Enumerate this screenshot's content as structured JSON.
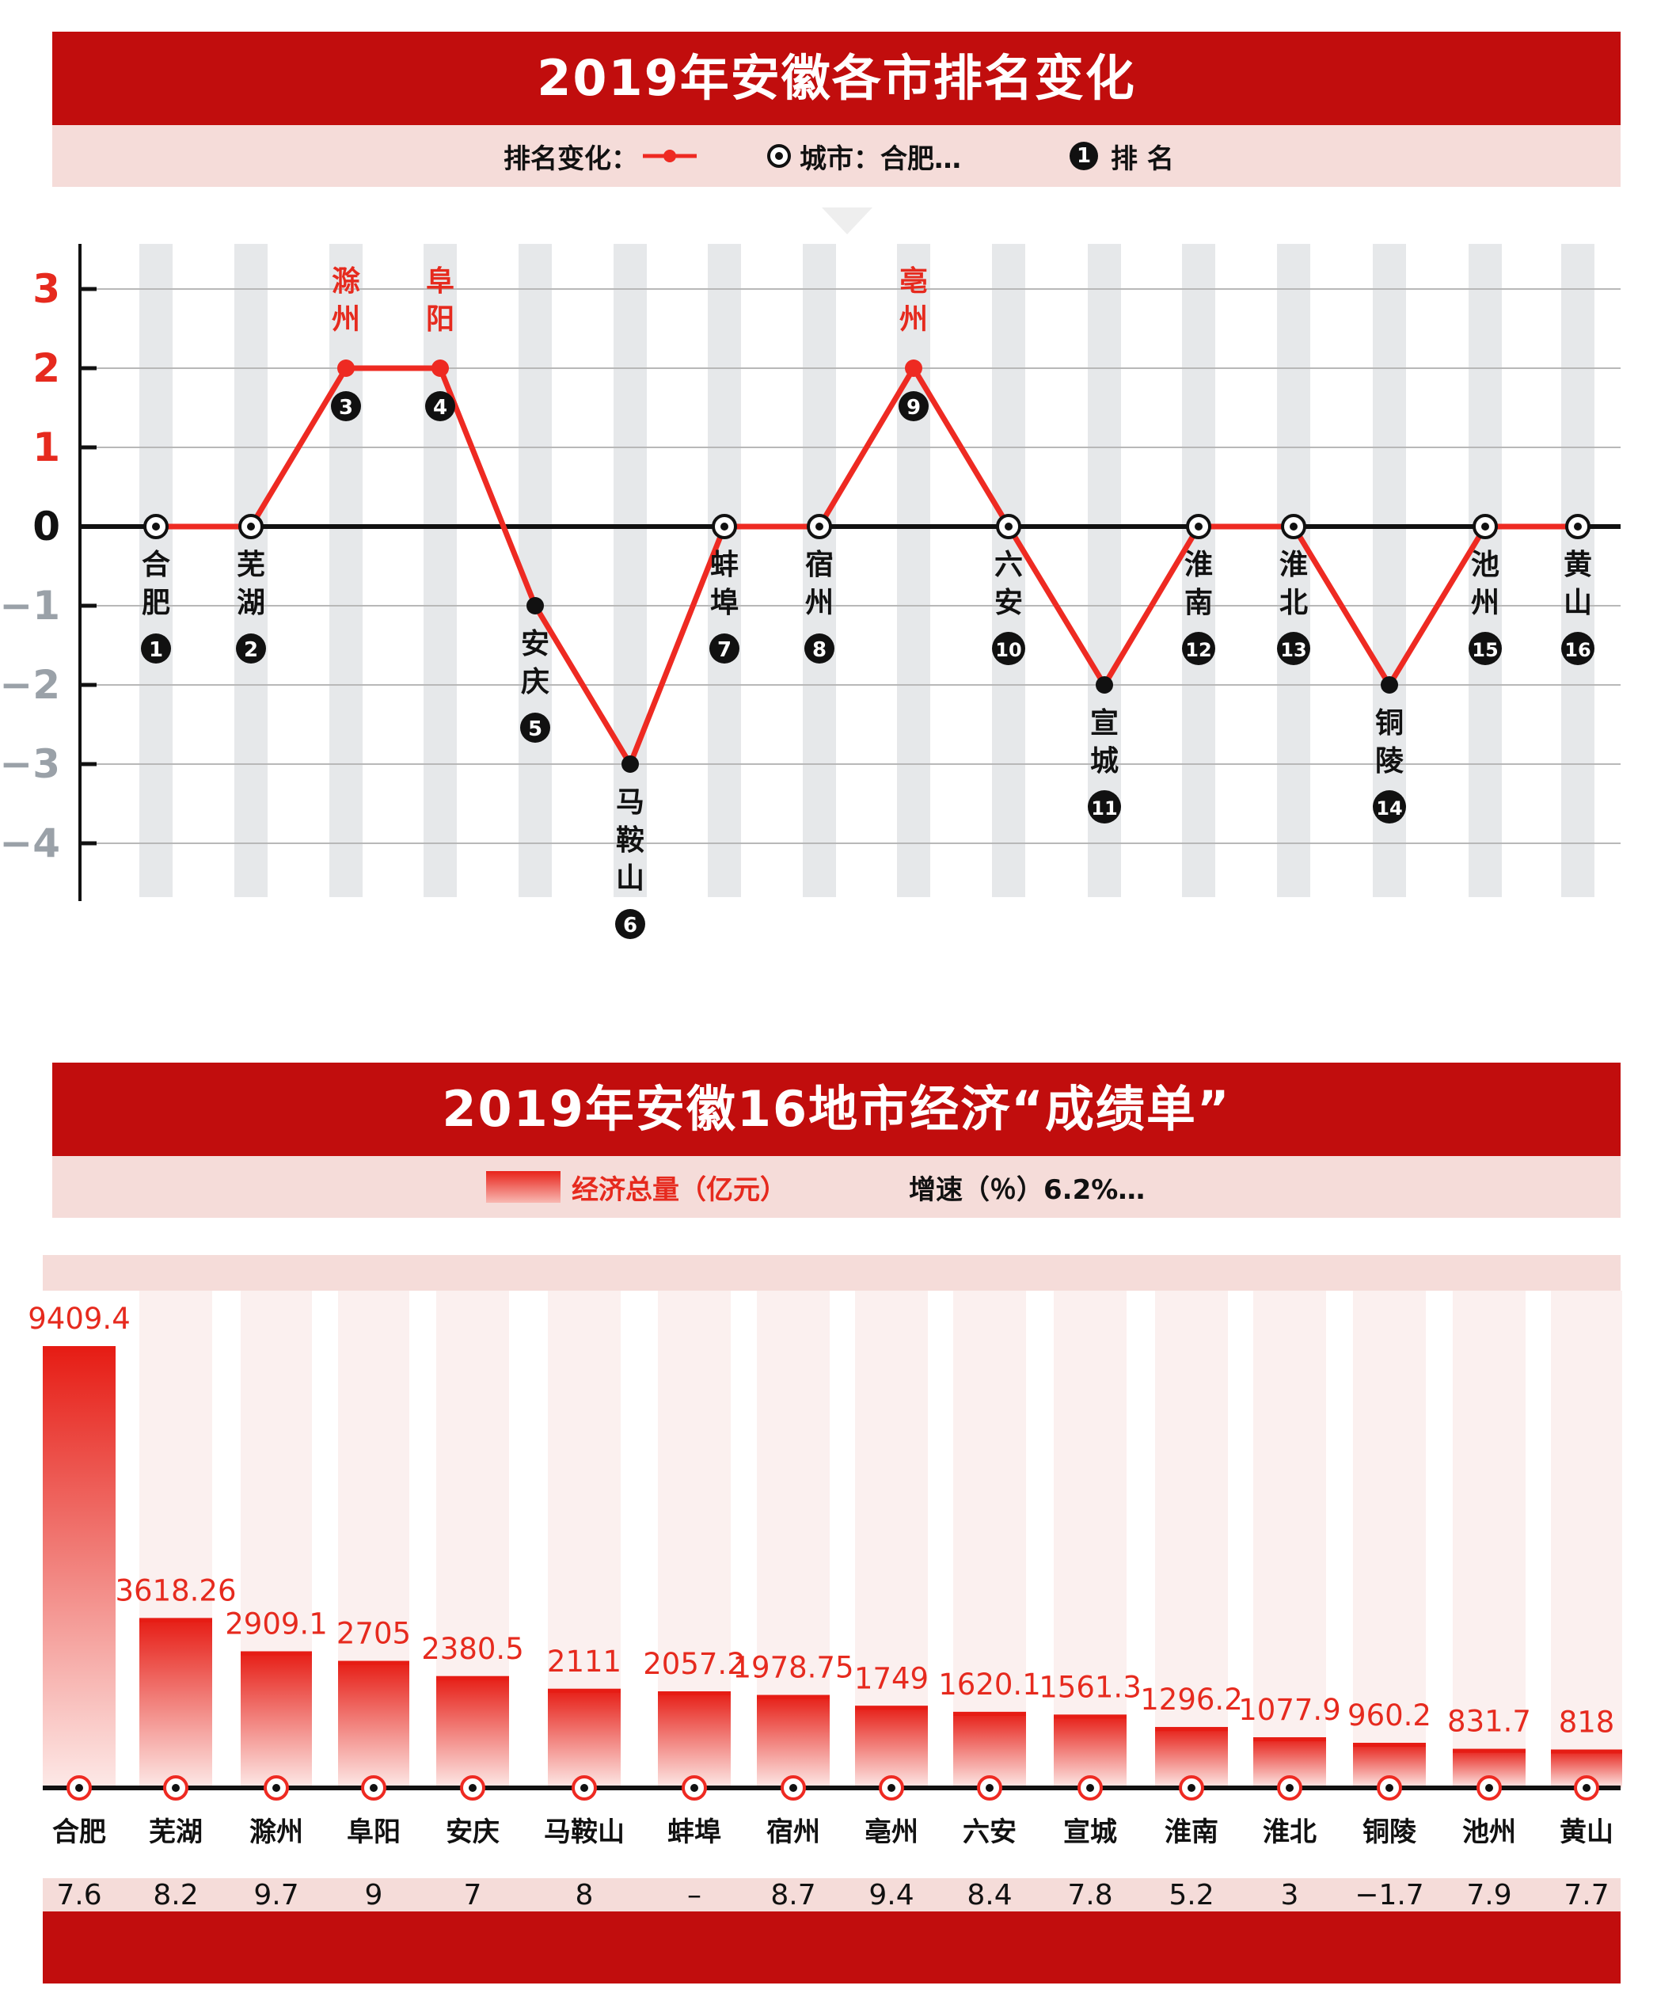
{
  "rank_section": {
    "title": "2019年安徽各市排名变化",
    "legend": {
      "change_label": "排名变化：",
      "city_label": "城市：合肥…",
      "rank_label": "排 名",
      "rank_sample": "1"
    }
  },
  "economy_section": {
    "title": "2019年安徽16地市经济“成绩单”",
    "legend": {
      "gdp_label": "经济总量（亿元）",
      "growth_label": "增速（％）6.2%…"
    }
  },
  "colors": {
    "banner": "#c10d0d",
    "legend_bg": "#f5dcd9",
    "accent_red": "#e62a1e",
    "line_red": "#ee2a22",
    "negative_axis_gray": "#9aa1a8",
    "stripe_gray": "#e6e8ea"
  },
  "chart_data": [
    {
      "type": "line",
      "title": "2019年安徽各市排名变化",
      "ylim": [
        -4.7,
        3.4
      ],
      "yticks": [
        {
          "value": 3,
          "label": "3"
        },
        {
          "value": 2,
          "label": "2"
        },
        {
          "value": 1,
          "label": "1"
        },
        {
          "value": 0,
          "label": "0"
        },
        {
          "value": -1,
          "label": "−1"
        },
        {
          "value": -2,
          "label": "−2"
        },
        {
          "value": -3,
          "label": "−3"
        },
        {
          "value": -4,
          "label": "−4"
        }
      ],
      "grid": true,
      "series": [
        {
          "name": "排名变化",
          "values": [
            0,
            0,
            2,
            2,
            -1,
            -3,
            0,
            0,
            2,
            0,
            -2,
            0,
            0,
            -2,
            0,
            0
          ]
        }
      ],
      "points": [
        {
          "city": "合肥",
          "rank": "1",
          "change": 0
        },
        {
          "city": "芜湖",
          "rank": "2",
          "change": 0
        },
        {
          "city": "滁州",
          "rank": "3",
          "change": 2
        },
        {
          "city": "阜阳",
          "rank": "4",
          "change": 2
        },
        {
          "city": "安庆",
          "rank": "5",
          "change": -1
        },
        {
          "city": "马鞍山",
          "rank": "6",
          "change": -3
        },
        {
          "city": "蚌埠",
          "rank": "7",
          "change": 0
        },
        {
          "city": "宿州",
          "rank": "8",
          "change": 0
        },
        {
          "city": "亳州",
          "rank": "9",
          "change": 2
        },
        {
          "city": "六安",
          "rank": "10",
          "change": 0
        },
        {
          "city": "宣城",
          "rank": "11",
          "change": -2
        },
        {
          "city": "淮南",
          "rank": "12",
          "change": 0
        },
        {
          "city": "淮北",
          "rank": "13",
          "change": 0
        },
        {
          "city": "铜陵",
          "rank": "14",
          "change": -2
        },
        {
          "city": "池州",
          "rank": "15",
          "change": 0
        },
        {
          "city": "黄山",
          "rank": "16",
          "change": 0
        }
      ]
    },
    {
      "type": "bar",
      "title": "2019年安徽16地市经济“成绩单”",
      "categories": [
        "合肥",
        "芜湖",
        "滁州",
        "阜阳",
        "安庆",
        "马鞍山",
        "蚌埠",
        "宿州",
        "亳州",
        "六安",
        "宣城",
        "淮南",
        "淮北",
        "铜陵",
        "池州",
        "黄山"
      ],
      "series": [
        {
          "name": "经济总量（亿元）",
          "values": [
            9409.4,
            3618.26,
            2909.1,
            2705,
            2380.5,
            2111,
            2057.2,
            1978.75,
            1749,
            1620.1,
            1561.3,
            1296.2,
            1077.9,
            960.2,
            831.7,
            818
          ]
        }
      ],
      "value_labels": [
        "9409.4",
        "3618.26",
        "2909.1",
        "2705",
        "2380.5",
        "2111",
        "2057.2",
        "1978.75",
        "1749",
        "1620.1",
        "1561.3",
        "1296.2",
        "1077.9",
        "960.2",
        "831.7",
        "818"
      ],
      "growth_rate_labels": [
        "7.6",
        "8.2",
        "9.7",
        "9",
        "7",
        "8",
        "–",
        "8.7",
        "9.4",
        "8.4",
        "7.8",
        "5.2",
        "3",
        "−1.7",
        "7.9",
        "7.7"
      ],
      "ylim": [
        0,
        9409.4
      ]
    }
  ]
}
